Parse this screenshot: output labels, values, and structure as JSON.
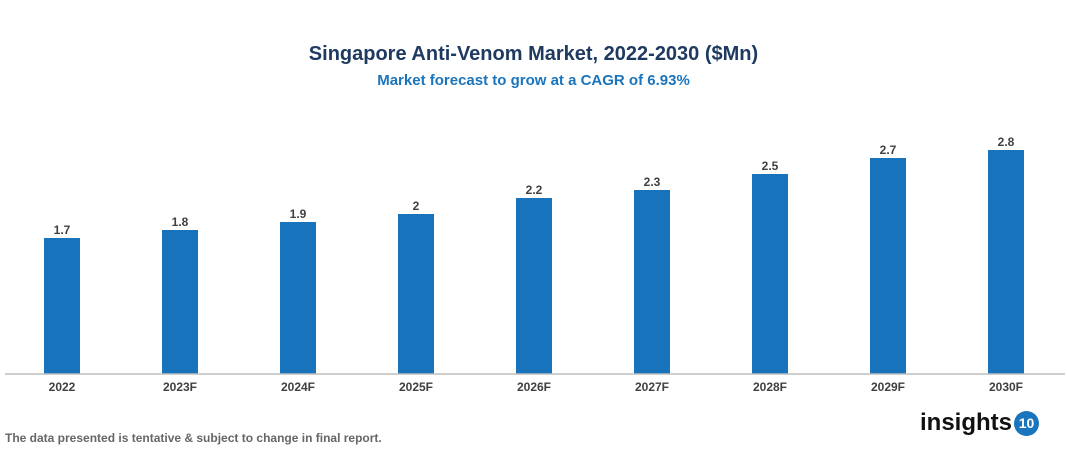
{
  "chart_data": {
    "type": "bar",
    "title": "Singapore Anti-Venom Market, 2022-2030 ($Mn)",
    "subtitle": "Market forecast to grow at a CAGR of 6.93%",
    "categories": [
      "2022",
      "2023F",
      "2024F",
      "2025F",
      "2026F",
      "2027F",
      "2028F",
      "2029F",
      "2030F"
    ],
    "values": [
      1.7,
      1.8,
      1.9,
      2,
      2.2,
      2.3,
      2.5,
      2.7,
      2.8
    ],
    "data_labels": [
      "1.7",
      "1.8",
      "1.9",
      "2",
      "2.2",
      "2.3",
      "2.5",
      "2.7",
      "2.8"
    ],
    "xlabel": "",
    "ylabel": "",
    "ylim": [
      0,
      2.8
    ],
    "grid": false,
    "bar_color": "#1873bd"
  },
  "footer": {
    "disclaimer": "The data presented is tentative & subject to change in final report."
  },
  "logo": {
    "text": "insights",
    "badge": "10"
  }
}
